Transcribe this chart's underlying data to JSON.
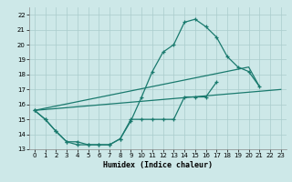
{
  "xlabel": "Humidex (Indice chaleur)",
  "xlim": [
    -0.5,
    23.5
  ],
  "ylim": [
    13,
    22.5
  ],
  "yticks": [
    13,
    14,
    15,
    16,
    17,
    18,
    19,
    20,
    21,
    22
  ],
  "xticks": [
    0,
    1,
    2,
    3,
    4,
    5,
    6,
    7,
    8,
    9,
    10,
    11,
    12,
    13,
    14,
    15,
    16,
    17,
    18,
    19,
    20,
    21,
    22,
    23
  ],
  "background_color": "#cde8e8",
  "grid_color": "#aacccc",
  "line_color": "#1a7a6e",
  "curve1_x": [
    0,
    1,
    2,
    3,
    4,
    5,
    6,
    7,
    8,
    9,
    10,
    11,
    12,
    13,
    14,
    15,
    16,
    17,
    18,
    19,
    20,
    21
  ],
  "curve1_y": [
    15.6,
    15.0,
    14.2,
    13.5,
    13.3,
    13.3,
    13.3,
    13.3,
    13.7,
    14.9,
    16.5,
    18.2,
    19.5,
    20.0,
    21.5,
    21.7,
    21.2,
    20.5,
    19.2,
    18.5,
    18.2,
    17.2
  ],
  "curve2_x": [
    0,
    1,
    2,
    3,
    4,
    5,
    6,
    7,
    8,
    9,
    10,
    11,
    12,
    13,
    14,
    15,
    16,
    17
  ],
  "curve2_y": [
    15.6,
    15.0,
    14.2,
    13.5,
    13.5,
    13.3,
    13.3,
    13.3,
    13.7,
    15.0,
    15.0,
    15.0,
    15.0,
    15.0,
    16.5,
    16.5,
    16.5,
    17.5
  ],
  "line3_x": [
    0,
    23
  ],
  "line3_y": [
    15.6,
    17.0
  ],
  "line4_x": [
    0,
    20,
    21
  ],
  "line4_y": [
    15.6,
    18.5,
    17.2
  ]
}
